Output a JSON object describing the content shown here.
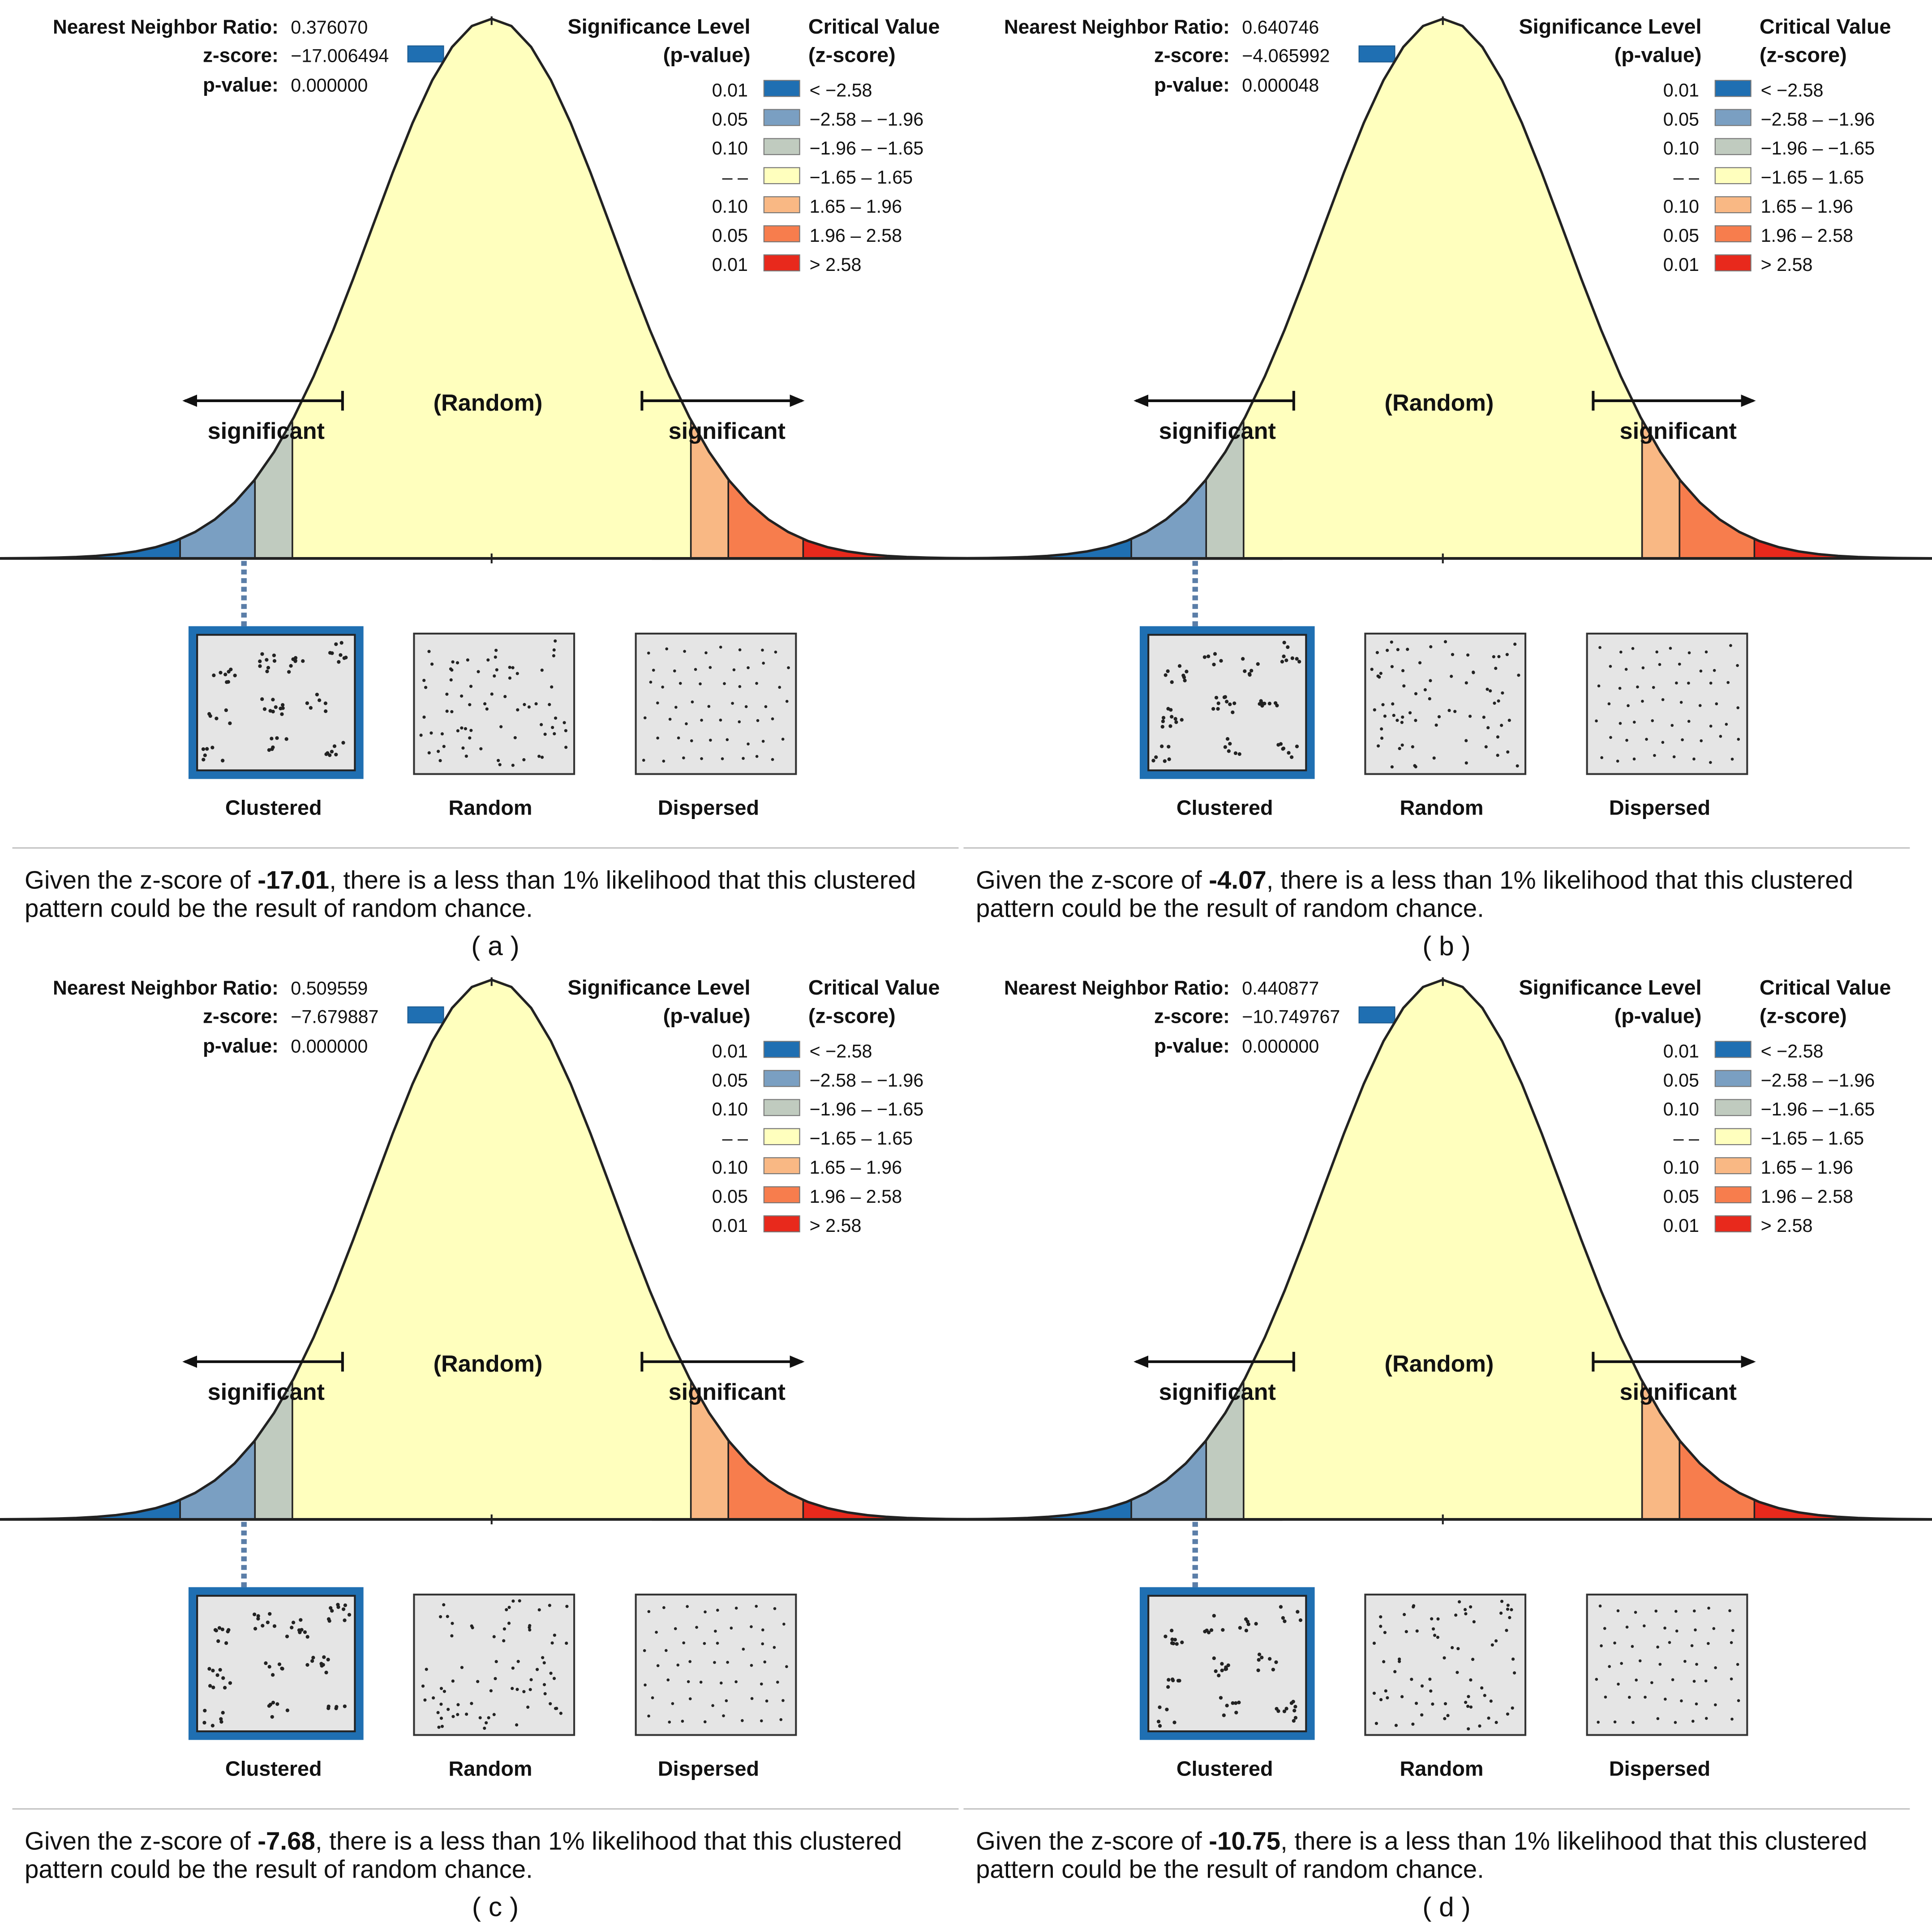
{
  "labels": {
    "nnr": "Nearest Neighbor Ratio:",
    "zscore": "z-score:",
    "pvalue": "p-value:",
    "sig_level": "Significance Level",
    "p_value_paren": "(p-value)",
    "critical_value": "Critical Value",
    "z_score_paren": "(z-score)",
    "random_center": "(Random)",
    "significant": "significant",
    "clustered": "Clustered",
    "random": "Random",
    "dispersed": "Dispersed"
  },
  "legend": [
    {
      "p": "0.01",
      "range": "< −2.58",
      "color": "#1f6fb2"
    },
    {
      "p": "0.05",
      "range": "−2.58 – −1.96",
      "color": "#7a9fc2"
    },
    {
      "p": "0.10",
      "range": "−1.96 – −1.65",
      "color": "#c0cbbf"
    },
    {
      "p": "– –",
      "range": "−1.65 – 1.65",
      "color": "#ffffbe"
    },
    {
      "p": "0.10",
      "range": "1.65 – 1.96",
      "color": "#f9b884"
    },
    {
      "p": "0.05",
      "range": "1.96 – 2.58",
      "color": "#f77d4d"
    },
    {
      "p": "0.01",
      "range": "> 2.58",
      "color": "#e8291c"
    }
  ],
  "panels": [
    {
      "label": "( a )",
      "nnr": "0.376070",
      "zscore": "−17.006494",
      "pvalue": "0.000000",
      "caption_pre": "Given the z-score of ",
      "caption_value": "-17.01",
      "caption_post": ", there is a less than 1% likelihood that this clustered",
      "caption_line2": "pattern could be the result of random chance."
    },
    {
      "label": "( b )",
      "nnr": "0.640746",
      "zscore": "−4.065992",
      "pvalue": "0.000048",
      "caption_pre": "Given the z-score of ",
      "caption_value": "-4.07",
      "caption_post": ", there is a less than 1% likelihood that this clustered",
      "caption_line2": "pattern could be the result of random chance."
    },
    {
      "label": "( c )",
      "nnr": "0.509559",
      "zscore": "−7.679887",
      "pvalue": "0.000000",
      "caption_pre": "Given the z-score of ",
      "caption_value": "-7.68",
      "caption_post": ", there is a less than 1% likelihood that this clustered",
      "caption_line2": "pattern could be the result of random chance."
    },
    {
      "label": "( d )",
      "nnr": "0.440877",
      "zscore": "−10.749767",
      "pvalue": "0.000000",
      "caption_pre": "Given the z-score of ",
      "caption_value": "-10.75",
      "caption_post": ", there is a less than 1% likelihood that this clustered",
      "caption_line2": "pattern could be the result of random chance."
    }
  ]
}
